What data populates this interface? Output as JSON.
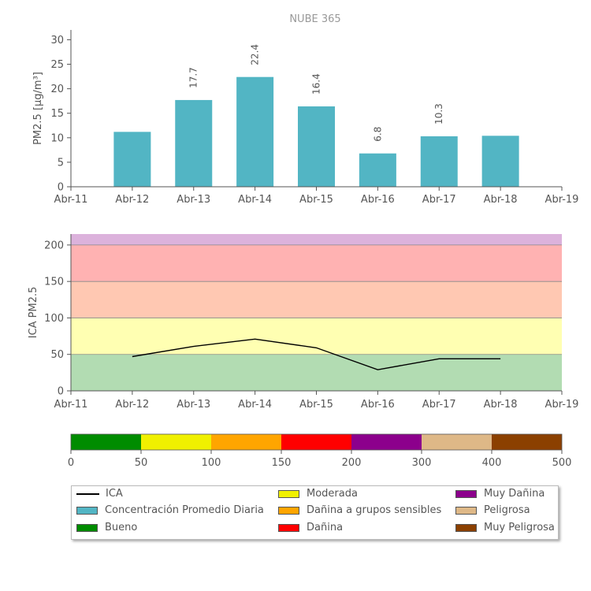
{
  "chart_data": [
    {
      "type": "bar",
      "title": "NUBE 365",
      "ylabel": "PM2.5 [μg/m³]",
      "xlabel": "",
      "x_ticks": [
        "Abr-11",
        "Abr-12",
        "Abr-13",
        "Abr-14",
        "Abr-15",
        "Abr-16",
        "Abr-17",
        "Abr-18",
        "Abr-19"
      ],
      "ylim": [
        0,
        32
      ],
      "y_ticks": [
        "0",
        "5",
        "10",
        "15",
        "20",
        "25",
        "30"
      ],
      "series": [
        {
          "name": "Concentración Promedio Diaria",
          "color": "#52b5c4",
          "points": [
            {
              "x": "Abr-12",
              "value": 11.2,
              "label": ""
            },
            {
              "x": "Abr-13",
              "value": 17.7,
              "label": "17.7"
            },
            {
              "x": "Abr-14",
              "value": 22.4,
              "label": "22.4"
            },
            {
              "x": "Abr-15",
              "value": 16.4,
              "label": "16.4"
            },
            {
              "x": "Abr-16",
              "value": 6.8,
              "label": "6.8"
            },
            {
              "x": "Abr-17",
              "value": 10.3,
              "label": "10.3"
            },
            {
              "x": "Abr-18",
              "value": 10.4,
              "label": ""
            }
          ]
        }
      ]
    },
    {
      "type": "line",
      "ylabel": "ICA PM2.5",
      "x_ticks": [
        "Abr-11",
        "Abr-12",
        "Abr-13",
        "Abr-14",
        "Abr-15",
        "Abr-16",
        "Abr-17",
        "Abr-18",
        "Abr-19"
      ],
      "ylim": [
        0,
        215
      ],
      "y_ticks": [
        "0",
        "50",
        "100",
        "150",
        "200"
      ],
      "bands": [
        {
          "from": 0,
          "to": 50,
          "color": "#b2dcb2"
        },
        {
          "from": 50,
          "to": 100,
          "color": "#ffffb2"
        },
        {
          "from": 100,
          "to": 150,
          "color": "#ffc8b2"
        },
        {
          "from": 150,
          "to": 200,
          "color": "#ffb2b2"
        },
        {
          "from": 200,
          "to": 215,
          "color": "#dcb2dc"
        }
      ],
      "series": [
        {
          "name": "ICA",
          "color": "#000000",
          "points": [
            {
              "x": "Abr-12",
              "value": 47
            },
            {
              "x": "Abr-13",
              "value": 61
            },
            {
              "x": "Abr-14",
              "value": 71
            },
            {
              "x": "Abr-15",
              "value": 59
            },
            {
              "x": "Abr-16",
              "value": 29
            },
            {
              "x": "Abr-17",
              "value": 44
            },
            {
              "x": "Abr-18",
              "value": 44
            }
          ]
        }
      ]
    },
    {
      "type": "colorbar",
      "ticks": [
        "0",
        "50",
        "100",
        "150",
        "200",
        "300",
        "400",
        "500"
      ],
      "segments": [
        {
          "from": 0,
          "to": 50,
          "color": "#008c00"
        },
        {
          "from": 50,
          "to": 100,
          "color": "#f0f000"
        },
        {
          "from": 100,
          "to": 150,
          "color": "#ffa500"
        },
        {
          "from": 150,
          "to": 200,
          "color": "#ff0000"
        },
        {
          "from": 200,
          "to": 300,
          "color": "#8c008c"
        },
        {
          "from": 300,
          "to": 400,
          "color": "#deb887"
        },
        {
          "from": 400,
          "to": 500,
          "color": "#8b4000"
        }
      ]
    }
  ],
  "legend": {
    "items": [
      {
        "label": "ICA",
        "kind": "line",
        "color": "#000000"
      },
      {
        "label": "Concentración Promedio Diaria",
        "kind": "box",
        "color": "#52b5c4"
      },
      {
        "label": "Bueno",
        "kind": "box",
        "color": "#008c00"
      },
      {
        "label": "Moderada",
        "kind": "box",
        "color": "#f0f000"
      },
      {
        "label": "Dañina a grupos sensibles",
        "kind": "box",
        "color": "#ffa500"
      },
      {
        "label": "Dañina",
        "kind": "box",
        "color": "#ff0000"
      },
      {
        "label": "Muy Dañina",
        "kind": "box",
        "color": "#8c008c"
      },
      {
        "label": "Peligrosa",
        "kind": "box",
        "color": "#deb887"
      },
      {
        "label": "Muy Peligrosa",
        "kind": "box",
        "color": "#8b4000"
      }
    ]
  }
}
